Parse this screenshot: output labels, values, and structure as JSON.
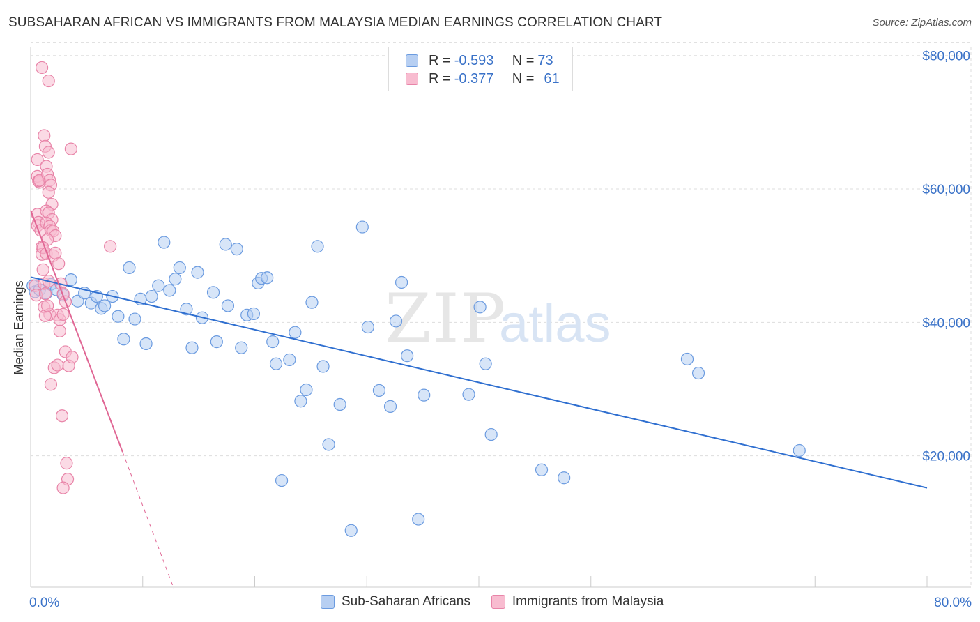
{
  "title": "SUBSAHARAN AFRICAN VS IMMIGRANTS FROM MALAYSIA MEDIAN EARNINGS CORRELATION CHART",
  "source": "Source: ZipAtlas.com",
  "watermark": {
    "zip": "ZIP",
    "atlas": "atlas"
  },
  "legend": {
    "rows": [
      {
        "r_label": "R =",
        "r_value": "-0.593",
        "n_label": "N =",
        "n_value": "73"
      },
      {
        "r_label": "R =",
        "r_value": "-0.377",
        "n_label": "N =",
        "n_value": "61"
      }
    ]
  },
  "colors": {
    "blue_fill": "#b7cff2",
    "blue_stroke": "#6b9be0",
    "blue_line": "#2f6fd0",
    "pink_fill": "#f8bcd0",
    "pink_stroke": "#e884a8",
    "pink_line": "#e06694",
    "tick_label": "#3a72c8",
    "grid": "#dddddd"
  },
  "chart_data": {
    "type": "scatter",
    "title": "SUBSAHARAN AFRICAN VS IMMIGRANTS FROM MALAYSIA MEDIAN EARNINGS CORRELATION CHART",
    "xlabel": "",
    "ylabel": "Median Earnings",
    "xlim": [
      0,
      80
    ],
    "ylim": [
      0,
      82000
    ],
    "x_tick_labels": [
      "0.0%",
      "80.0%"
    ],
    "y_ticks": [
      20000,
      40000,
      60000,
      80000
    ],
    "y_tick_labels": [
      "$20,000",
      "$40,000",
      "$60,000",
      "$80,000"
    ],
    "grid": true,
    "series": [
      {
        "name": "Sub-Saharan Africans",
        "color": "#6b9be0",
        "trend": {
          "x0": 0,
          "y0": 46800,
          "x1": 80,
          "y1": 15200
        },
        "points": [
          [
            0.2,
            45500
          ],
          [
            0.4,
            44600
          ],
          [
            0.8,
            44900
          ],
          [
            1.4,
            44400
          ],
          [
            1.8,
            45700
          ],
          [
            2.3,
            44900
          ],
          [
            2.9,
            44100
          ],
          [
            3.6,
            46400
          ],
          [
            4.2,
            43200
          ],
          [
            4.8,
            44400
          ],
          [
            5.4,
            42900
          ],
          [
            5.9,
            43900
          ],
          [
            6.3,
            42100
          ],
          [
            6.6,
            42500
          ],
          [
            7.3,
            43900
          ],
          [
            7.8,
            40900
          ],
          [
            8.3,
            37500
          ],
          [
            8.8,
            48200
          ],
          [
            9.3,
            40500
          ],
          [
            9.8,
            43500
          ],
          [
            10.3,
            36800
          ],
          [
            10.8,
            43900
          ],
          [
            11.4,
            45500
          ],
          [
            11.9,
            52000
          ],
          [
            12.4,
            44800
          ],
          [
            12.9,
            46500
          ],
          [
            13.3,
            48200
          ],
          [
            13.9,
            42000
          ],
          [
            14.4,
            36200
          ],
          [
            14.9,
            47500
          ],
          [
            15.3,
            40700
          ],
          [
            16.3,
            44500
          ],
          [
            16.6,
            37100
          ],
          [
            17.4,
            51700
          ],
          [
            17.6,
            42500
          ],
          [
            18.4,
            51000
          ],
          [
            18.8,
            36200
          ],
          [
            19.3,
            41100
          ],
          [
            19.9,
            41300
          ],
          [
            20.3,
            45900
          ],
          [
            20.6,
            46600
          ],
          [
            21.1,
            46700
          ],
          [
            21.6,
            37100
          ],
          [
            21.9,
            33800
          ],
          [
            22.4,
            16300
          ],
          [
            23.1,
            34400
          ],
          [
            23.6,
            38500
          ],
          [
            24.1,
            28200
          ],
          [
            24.6,
            29900
          ],
          [
            25.1,
            43000
          ],
          [
            25.6,
            51400
          ],
          [
            26.1,
            33400
          ],
          [
            26.6,
            21700
          ],
          [
            27.6,
            27700
          ],
          [
            28.6,
            8800
          ],
          [
            29.6,
            54300
          ],
          [
            30.1,
            39300
          ],
          [
            31.1,
            29800
          ],
          [
            32.1,
            27400
          ],
          [
            32.6,
            40200
          ],
          [
            33.1,
            46000
          ],
          [
            33.6,
            35000
          ],
          [
            34.6,
            10500
          ],
          [
            35.1,
            29100
          ],
          [
            39.1,
            29200
          ],
          [
            40.6,
            33800
          ],
          [
            41.1,
            23200
          ],
          [
            45.6,
            17900
          ],
          [
            47.6,
            16700
          ],
          [
            58.6,
            34500
          ],
          [
            59.6,
            32400
          ],
          [
            68.6,
            20800
          ],
          [
            40.1,
            42300
          ]
        ]
      },
      {
        "name": "Immigrants from Malaysia",
        "color": "#e884a8",
        "trend": {
          "x0": 0,
          "y0": 56800,
          "x1": 8.2,
          "y1": 20600,
          "dash_x1": 12.8,
          "dash_y1": 0
        },
        "points": [
          [
            0.4,
            45500
          ],
          [
            0.5,
            44100
          ],
          [
            0.6,
            56200
          ],
          [
            0.7,
            55000
          ],
          [
            0.6,
            54500
          ],
          [
            0.8,
            61000
          ],
          [
            0.9,
            53800
          ],
          [
            1.0,
            51300
          ],
          [
            1.0,
            50200
          ],
          [
            1.1,
            47900
          ],
          [
            1.2,
            45800
          ],
          [
            1.3,
            44300
          ],
          [
            0.6,
            64400
          ],
          [
            0.6,
            61900
          ],
          [
            0.7,
            61200
          ],
          [
            0.8,
            61300
          ],
          [
            1.2,
            68000
          ],
          [
            1.3,
            66400
          ],
          [
            1.6,
            65500
          ],
          [
            1.4,
            63400
          ],
          [
            1.5,
            62200
          ],
          [
            1.7,
            61300
          ],
          [
            1.8,
            60600
          ],
          [
            1.6,
            59500
          ],
          [
            1.9,
            57700
          ],
          [
            1.4,
            56700
          ],
          [
            1.6,
            56400
          ],
          [
            1.9,
            55400
          ],
          [
            1.4,
            54900
          ],
          [
            1.7,
            54400
          ],
          [
            1.8,
            53800
          ],
          [
            2.0,
            53700
          ],
          [
            2.2,
            53000
          ],
          [
            1.5,
            52400
          ],
          [
            1.1,
            51200
          ],
          [
            1.4,
            50300
          ],
          [
            2.0,
            50000
          ],
          [
            2.2,
            50400
          ],
          [
            2.5,
            48800
          ],
          [
            1.6,
            46200
          ],
          [
            2.7,
            45800
          ],
          [
            2.9,
            44300
          ],
          [
            1.2,
            42300
          ],
          [
            1.7,
            41200
          ],
          [
            2.4,
            41100
          ],
          [
            2.6,
            40400
          ],
          [
            2.9,
            41200
          ],
          [
            3.1,
            43100
          ],
          [
            1.3,
            41000
          ],
          [
            1.5,
            42500
          ],
          [
            2.1,
            33200
          ],
          [
            1.8,
            30700
          ],
          [
            2.4,
            33600
          ],
          [
            2.6,
            38700
          ],
          [
            3.1,
            35600
          ],
          [
            3.4,
            33500
          ],
          [
            3.7,
            34800
          ],
          [
            2.8,
            26000
          ],
          [
            3.2,
            18900
          ],
          [
            3.3,
            16500
          ],
          [
            2.9,
            15200
          ]
        ],
        "outliers": [
          [
            1.0,
            78200
          ],
          [
            1.6,
            76200
          ],
          [
            3.6,
            66000
          ],
          [
            7.1,
            51400
          ]
        ]
      }
    ]
  },
  "bottom_legend": {
    "items": [
      {
        "label": "Sub-Saharan Africans"
      },
      {
        "label": "Immigrants from Malaysia"
      }
    ]
  }
}
